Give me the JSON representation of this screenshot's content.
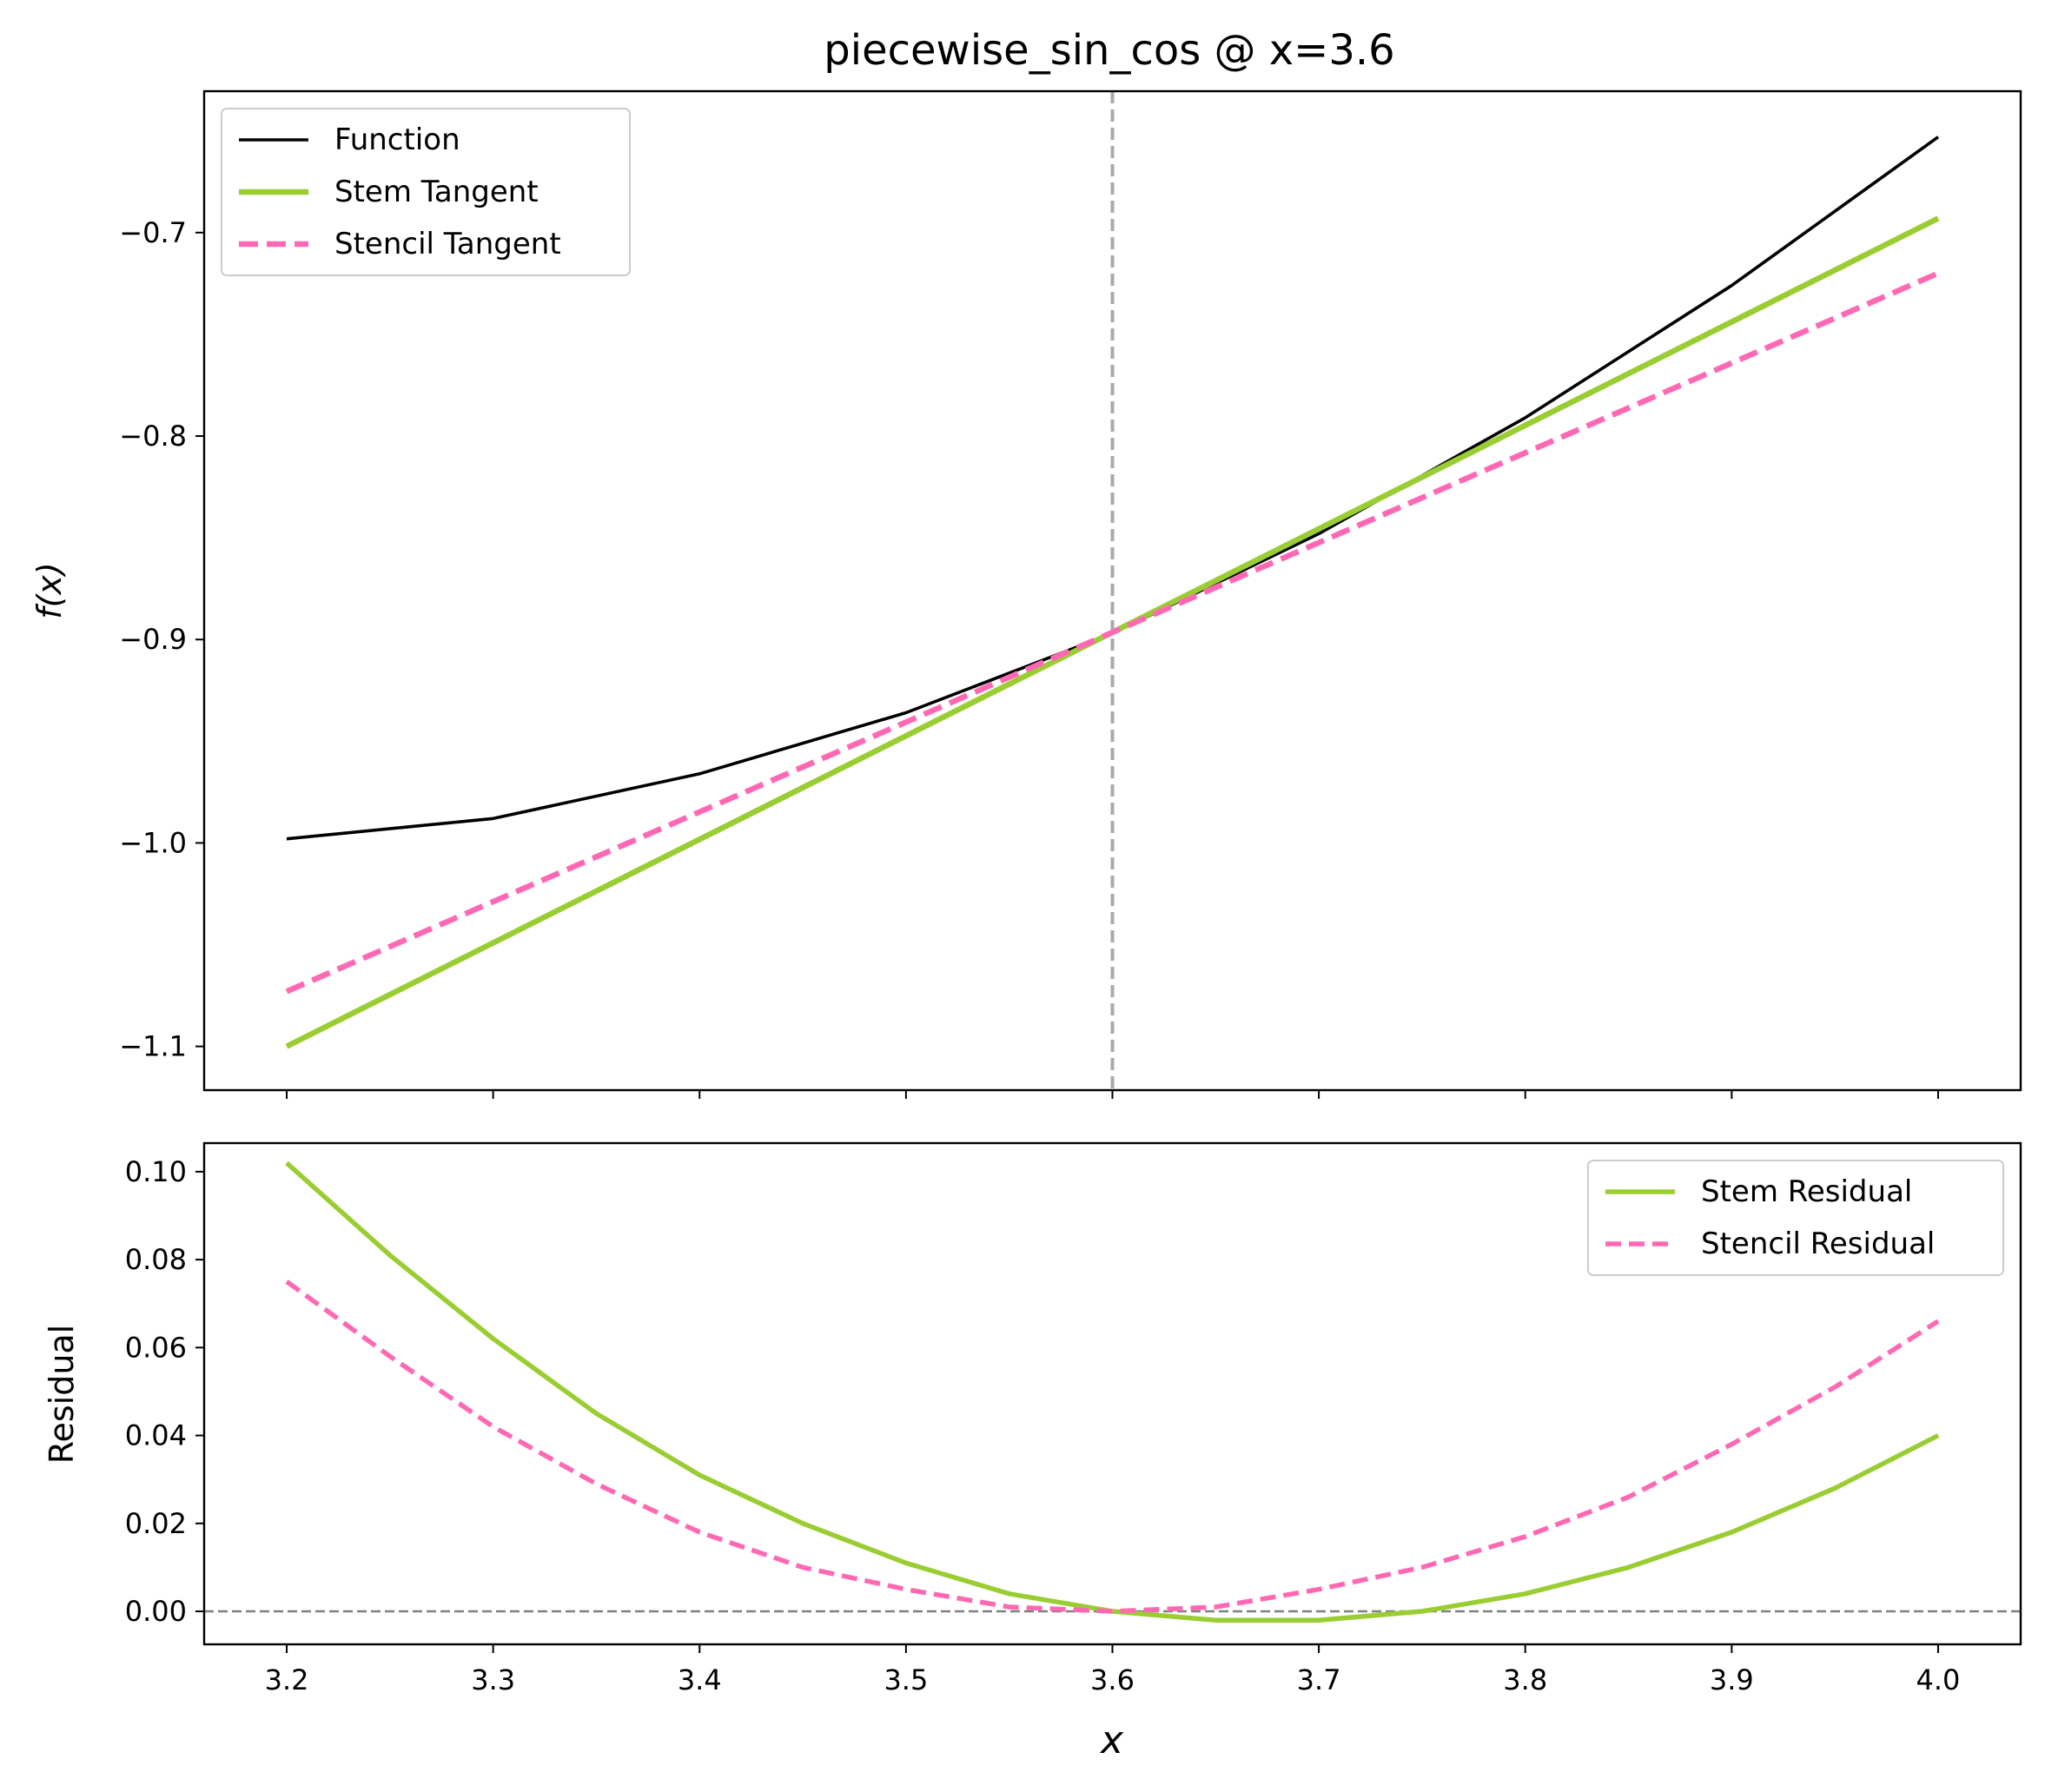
{
  "chart_data": [
    {
      "type": "line",
      "title": "piecewise_sin_cos @ x=3.6",
      "xlabel": "",
      "ylabel": "f(x)",
      "xlim": [
        3.16,
        4.04
      ],
      "ylim": [
        -1.1215,
        -0.6305
      ],
      "yticks": [
        -1.1,
        -1.0,
        -0.9,
        -0.8,
        -0.7
      ],
      "ytick_labels": [
        "−1.1",
        "−1.0",
        "−0.9",
        "−0.8",
        "−0.7"
      ],
      "xticks": [
        3.2,
        3.3,
        3.4,
        3.5,
        3.6,
        3.7,
        3.8,
        3.9,
        4.0
      ],
      "vline_x": 3.6,
      "legend_position": "top-left",
      "grid": false,
      "series": [
        {
          "name": "Function",
          "color": "#000000",
          "style": "solid",
          "x": [
            3.2,
            3.3,
            3.4,
            3.5,
            3.6,
            3.7,
            3.8,
            3.9,
            4.0
          ],
          "y": [
            -0.998,
            -0.988,
            -0.966,
            -0.936,
            -0.897,
            -0.848,
            -0.791,
            -0.726,
            -0.653
          ]
        },
        {
          "name": "Stem Tangent",
          "color": "#9acd32",
          "style": "solid",
          "x": [
            3.2,
            4.0
          ],
          "y": [
            -1.1,
            -0.693
          ]
        },
        {
          "name": "Stencil Tangent",
          "color": "#ff69b4",
          "style": "dashed",
          "x": [
            3.2,
            4.0
          ],
          "y": [
            -1.073,
            -0.72
          ]
        }
      ]
    },
    {
      "type": "line",
      "title": "",
      "xlabel": "x",
      "ylabel": "Residual",
      "xlim": [
        3.16,
        4.04
      ],
      "ylim": [
        -0.0075,
        0.1065
      ],
      "yticks": [
        0.0,
        0.02,
        0.04,
        0.06,
        0.08,
        0.1
      ],
      "ytick_labels": [
        "0.00",
        "0.02",
        "0.04",
        "0.06",
        "0.08",
        "0.10"
      ],
      "xticks": [
        3.2,
        3.3,
        3.4,
        3.5,
        3.6,
        3.7,
        3.8,
        3.9,
        4.0
      ],
      "xtick_labels": [
        "3.2",
        "3.3",
        "3.4",
        "3.5",
        "3.6",
        "3.7",
        "3.8",
        "3.9",
        "4.0"
      ],
      "hline_y": 0.0,
      "legend_position": "top-right",
      "grid": false,
      "series": [
        {
          "name": "Stem Residual",
          "color": "#9acd32",
          "style": "solid",
          "x": [
            3.2,
            3.25,
            3.3,
            3.35,
            3.4,
            3.45,
            3.5,
            3.55,
            3.6,
            3.65,
            3.7,
            3.75,
            3.8,
            3.85,
            3.9,
            3.95,
            4.0
          ],
          "y": [
            0.102,
            0.081,
            0.062,
            0.045,
            0.031,
            0.02,
            0.011,
            0.004,
            0.0,
            -0.002,
            -0.002,
            0.0,
            0.004,
            0.01,
            0.018,
            0.028,
            0.04
          ]
        },
        {
          "name": "Stencil Residual",
          "color": "#ff69b4",
          "style": "dashed",
          "x": [
            3.2,
            3.25,
            3.3,
            3.35,
            3.4,
            3.45,
            3.5,
            3.55,
            3.6,
            3.65,
            3.7,
            3.75,
            3.8,
            3.85,
            3.9,
            3.95,
            4.0
          ],
          "y": [
            0.075,
            0.058,
            0.042,
            0.029,
            0.018,
            0.01,
            0.005,
            0.001,
            0.0,
            0.001,
            0.005,
            0.01,
            0.017,
            0.026,
            0.038,
            0.051,
            0.066
          ]
        }
      ]
    }
  ]
}
